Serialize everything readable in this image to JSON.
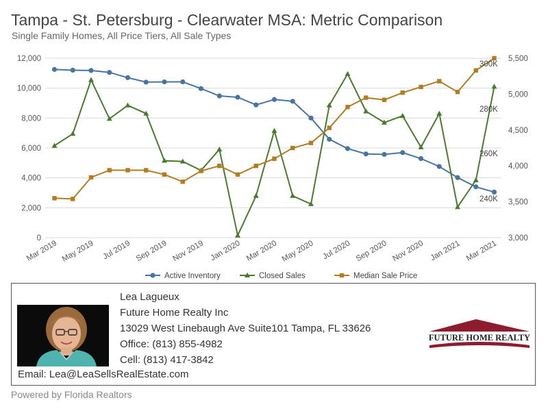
{
  "header": {
    "title": "Tampa - St. Petersburg - Clearwater MSA: Metric Comparison",
    "subtitle": "Single Family Homes, All Price Tiers, All Sale Types"
  },
  "chart_data": {
    "type": "line",
    "categories": [
      "Mar 2019",
      "Apr 2019",
      "May 2019",
      "Jun 2019",
      "Jul 2019",
      "Aug 2019",
      "Sep 2019",
      "Oct 2019",
      "Nov 2019",
      "Dec 2019",
      "Jan 2020",
      "Feb 2020",
      "Mar 2020",
      "Apr 2020",
      "May 2020",
      "Jun 2020",
      "Jul 2020",
      "Aug 2020",
      "Sep 2020",
      "Oct 2020",
      "Nov 2020",
      "Dec 2020",
      "Jan 2021",
      "Feb 2021",
      "Mar 2021"
    ],
    "x_tick_labels": [
      "Mar 2019",
      "May 2019",
      "Jul 2019",
      "Sep 2019",
      "Nov 2019",
      "Jan 2020",
      "Mar 2020",
      "May 2020",
      "Jul 2020",
      "Sep 2020",
      "Nov 2020",
      "Jan 2021",
      "Mar 2021"
    ],
    "left_axis": {
      "ylim": [
        0,
        12000
      ],
      "ticks": [
        "0",
        "2,000",
        "4,000",
        "6,000",
        "8,000",
        "10,000",
        "12,000"
      ]
    },
    "right_axis": {
      "ylim": [
        3000,
        5500
      ],
      "ticks": [
        "3,000",
        "3,500",
        "4,000",
        "4,500",
        "5,000",
        "5,500"
      ]
    },
    "series": [
      {
        "name": "Active Inventory",
        "axis": "left",
        "color": "#4a74a0",
        "marker": "circle",
        "values": [
          11250,
          11200,
          11180,
          11050,
          10700,
          10400,
          10420,
          10420,
          9970,
          9480,
          9390,
          8880,
          9240,
          9120,
          8000,
          6580,
          5960,
          5600,
          5570,
          5690,
          5290,
          4760,
          4020,
          3400,
          3050
        ]
      },
      {
        "name": "Closed Sales",
        "axis": "left",
        "color": "#4a7a2c",
        "marker": "triangle",
        "values": [
          6150,
          6950,
          10550,
          7950,
          8850,
          8300,
          5150,
          5100,
          4500,
          5900,
          150,
          2800,
          7150,
          2800,
          2250,
          8850,
          10950,
          8450,
          7700,
          8150,
          6050,
          8300,
          2050,
          3850,
          10100
        ]
      },
      {
        "name": "Median Sale Price",
        "axis": "right",
        "color": "#b07d22",
        "marker": "square",
        "values": [
          3550,
          3540,
          3840,
          3940,
          3940,
          3940,
          3880,
          3780,
          3930,
          4000,
          3880,
          4000,
          4100,
          4250,
          4320,
          4530,
          4820,
          4950,
          4920,
          5020,
          5100,
          5180,
          5030,
          5330,
          5500
        ]
      }
    ],
    "annotations": [
      "300K",
      "280K",
      "260K",
      "240K"
    ],
    "legend": {
      "placement": "bottom",
      "items": [
        "Active Inventory",
        "Closed Sales",
        "Median Sale Price"
      ]
    }
  },
  "agent": {
    "name": "Lea Lagueux",
    "company": "Future Home Realty Inc",
    "address": "13029 West Linebaugh Ave Suite101 Tampa, FL 33626",
    "office": "Office: (813) 855-4982",
    "cell": "Cell: (813) 417-3842",
    "email": "Email: Lea@LeaSellsRealEstate.com"
  },
  "logo": {
    "text": "FUTURE HOME REALTY",
    "color": "#8c1c2e"
  },
  "footer": {
    "powered_by": "Powered by Florida Realtors"
  }
}
